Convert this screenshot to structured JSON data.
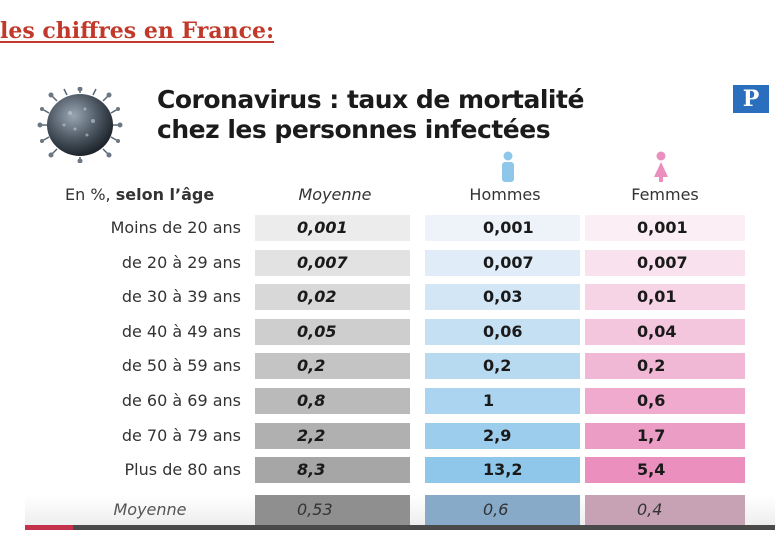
{
  "heading": "les chiffres en France:",
  "infographic": {
    "title_line1": "Coronavirus : taux de mortalité",
    "title_line2": "chez les personnes infectées",
    "logo": "P",
    "headers": {
      "age_prefix": "En %,",
      "age_bold": "selon l’âge",
      "moyenne": "Moyenne",
      "hommes": "Hommes",
      "femmes": "Femmes"
    },
    "rows": [
      {
        "age": "Moins de 20 ans",
        "moyenne": "0,001",
        "hommes": "0,001",
        "femmes": "0,001"
      },
      {
        "age": "de 20 à 29 ans",
        "moyenne": "0,007",
        "hommes": "0,007",
        "femmes": "0,007"
      },
      {
        "age": "de 30 à 39 ans",
        "moyenne": "0,02",
        "hommes": "0,03",
        "femmes": "0,01"
      },
      {
        "age": "de 40 à 49 ans",
        "moyenne": "0,05",
        "hommes": "0,06",
        "femmes": "0,04"
      },
      {
        "age": "de 50 à 59 ans",
        "moyenne": "0,2",
        "hommes": "0,2",
        "femmes": "0,2"
      },
      {
        "age": "de 60 à 69 ans",
        "moyenne": "0,8",
        "hommes": "1",
        "femmes": "0,6"
      },
      {
        "age": "de 70 à 79 ans",
        "moyenne": "2,2",
        "hommes": "2,9",
        "femmes": "1,7"
      },
      {
        "age": "Plus de 80 ans",
        "moyenne": "8,3",
        "hommes": "13,2",
        "femmes": "5,4"
      }
    ],
    "footer": {
      "label": "Moyenne",
      "moyenne": "0,53",
      "hommes": "0,6",
      "femmes": "0,4"
    },
    "icons": [
      "coronavirus-icon",
      "man-icon",
      "woman-icon"
    ],
    "colors": {
      "heading": "#c0392b",
      "logo": "#2a6fbd",
      "moyenne_light": "#ececec",
      "moyenne_dark": "#a6a6a6",
      "hommes_light": "#eef3fa",
      "hommes_dark": "#8fc7ea",
      "femmes_light": "#fbeff5",
      "femmes_dark": "#ea8fbe"
    }
  }
}
